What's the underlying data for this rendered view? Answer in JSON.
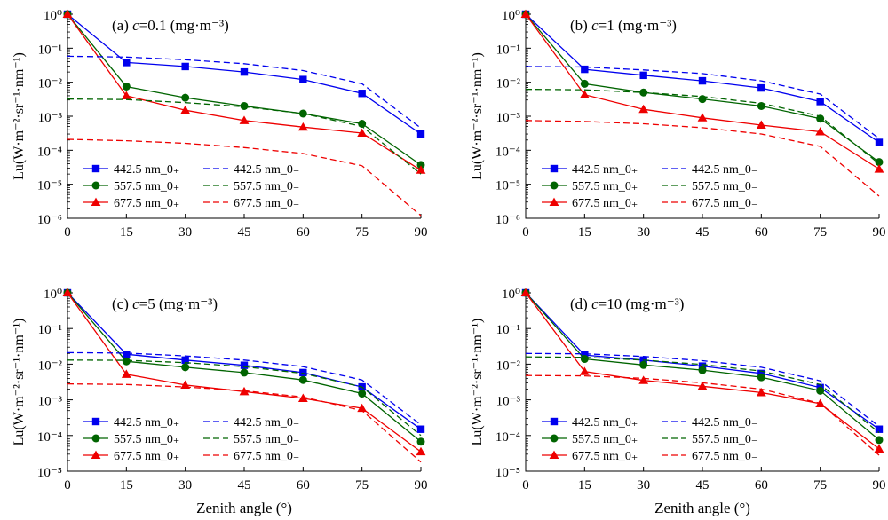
{
  "figure": {
    "y_axis_label": "Lu(W·m⁻²·sr⁻¹·nm⁻¹)",
    "x_axis_label": "Zenith angle (°)"
  },
  "chart_data": [
    {
      "type": "line",
      "panel_tag": "(a)",
      "title_var": "c",
      "title_rest": "=0.1 (mg·m⁻³)",
      "x": [
        0,
        15,
        30,
        45,
        60,
        75,
        90
      ],
      "x_ticks": [
        "0",
        "15",
        "30",
        "45",
        "60",
        "75",
        "90"
      ],
      "xlim": [
        0,
        90
      ],
      "ylim_exp": [
        -6,
        0
      ],
      "y_scale": "log",
      "y_ticks": [
        "10⁻⁶",
        "10⁻⁵",
        "10⁻⁴",
        "10⁻³",
        "10⁻²",
        "10⁻¹",
        "10⁰"
      ],
      "legend_placement": "bottom-left",
      "series": [
        {
          "name": "442.5 nm_0₊",
          "color": "#0000ee",
          "marker": "square",
          "dash": false,
          "values": [
            1.0,
            0.038,
            0.029,
            0.02,
            0.012,
            0.0047,
            0.0003
          ]
        },
        {
          "name": "557.5 nm_0₊",
          "color": "#006400",
          "marker": "circle",
          "dash": false,
          "values": [
            1.0,
            0.0075,
            0.0035,
            0.002,
            0.0012,
            0.0006,
            3.7e-05
          ]
        },
        {
          "name": "677.5 nm_0₊",
          "color": "#ee0000",
          "marker": "triangle",
          "dash": false,
          "values": [
            1.0,
            0.004,
            0.0015,
            0.00075,
            0.00048,
            0.00032,
            2.6e-05
          ]
        },
        {
          "name": "442.5 nm_0₋",
          "color": "#0000ee",
          "marker": "none",
          "dash": true,
          "values": [
            0.058,
            0.055,
            0.046,
            0.035,
            0.022,
            0.009,
            0.00045
          ]
        },
        {
          "name": "557.5 nm_0₋",
          "color": "#006400",
          "marker": "none",
          "dash": true,
          "values": [
            0.0032,
            0.0031,
            0.0025,
            0.0019,
            0.0012,
            0.0005,
            2e-05
          ]
        },
        {
          "name": "677.5 nm_0₋",
          "color": "#ee0000",
          "marker": "none",
          "dash": true,
          "values": [
            0.00021,
            0.00019,
            0.00016,
            0.00012,
            8e-05,
            3.5e-05,
            1.2e-06
          ]
        }
      ]
    },
    {
      "type": "line",
      "panel_tag": "(b)",
      "title_var": "c",
      "title_rest": "=1 (mg·m⁻³)",
      "x": [
        0,
        15,
        30,
        45,
        60,
        75,
        90
      ],
      "x_ticks": [
        "0",
        "15",
        "30",
        "45",
        "60",
        "75",
        "90"
      ],
      "xlim": [
        0,
        90
      ],
      "ylim_exp": [
        -6,
        0
      ],
      "y_scale": "log",
      "y_ticks": [
        "10⁻⁶",
        "10⁻⁵",
        "10⁻⁴",
        "10⁻³",
        "10⁻²",
        "10⁻¹",
        "10⁰"
      ],
      "legend_placement": "bottom-left",
      "series": [
        {
          "name": "442.5 nm_0₊",
          "color": "#0000ee",
          "marker": "square",
          "dash": false,
          "values": [
            1.0,
            0.024,
            0.016,
            0.011,
            0.0068,
            0.0027,
            0.00017
          ]
        },
        {
          "name": "557.5 nm_0₊",
          "color": "#006400",
          "marker": "circle",
          "dash": false,
          "values": [
            1.0,
            0.009,
            0.005,
            0.0032,
            0.002,
            0.00085,
            4.5e-05
          ]
        },
        {
          "name": "677.5 nm_0₊",
          "color": "#ee0000",
          "marker": "triangle",
          "dash": false,
          "values": [
            1.0,
            0.0043,
            0.0016,
            0.0009,
            0.00055,
            0.00035,
            2.8e-05
          ]
        },
        {
          "name": "442.5 nm_0₋",
          "color": "#0000ee",
          "marker": "none",
          "dash": true,
          "values": [
            0.029,
            0.028,
            0.023,
            0.018,
            0.011,
            0.0045,
            0.00022
          ]
        },
        {
          "name": "557.5 nm_0₋",
          "color": "#006400",
          "marker": "none",
          "dash": true,
          "values": [
            0.0062,
            0.006,
            0.005,
            0.0038,
            0.0024,
            0.001,
            4e-05
          ]
        },
        {
          "name": "677.5 nm_0₋",
          "color": "#ee0000",
          "marker": "none",
          "dash": true,
          "values": [
            0.00075,
            0.0007,
            0.0006,
            0.00046,
            0.0003,
            0.00013,
            4.5e-06
          ]
        }
      ]
    },
    {
      "type": "line",
      "panel_tag": "(c)",
      "title_var": "c",
      "title_rest": "=5 (mg·m⁻³)",
      "x": [
        0,
        15,
        30,
        45,
        60,
        75,
        90
      ],
      "x_ticks": [
        "0",
        "15",
        "30",
        "45",
        "60",
        "75",
        "90"
      ],
      "xlim": [
        0,
        90
      ],
      "ylim_exp": [
        -5,
        0
      ],
      "y_scale": "log",
      "y_ticks": [
        "10⁻⁵",
        "10⁻⁴",
        "10⁻³",
        "10⁻²",
        "10⁻¹",
        "10⁰"
      ],
      "legend_placement": "bottom-left",
      "series": [
        {
          "name": "442.5 nm_0₊",
          "color": "#0000ee",
          "marker": "square",
          "dash": false,
          "values": [
            1.0,
            0.019,
            0.013,
            0.0093,
            0.0058,
            0.0023,
            0.00015
          ]
        },
        {
          "name": "557.5 nm_0₊",
          "color": "#006400",
          "marker": "circle",
          "dash": false,
          "values": [
            1.0,
            0.012,
            0.0082,
            0.0058,
            0.0036,
            0.0015,
            6.7e-05
          ]
        },
        {
          "name": "677.5 nm_0₊",
          "color": "#ee0000",
          "marker": "triangle",
          "dash": false,
          "values": [
            1.0,
            0.0052,
            0.0026,
            0.0017,
            0.0011,
            0.00058,
            3.5e-05
          ]
        },
        {
          "name": "442.5 nm_0₋",
          "color": "#0000ee",
          "marker": "none",
          "dash": true,
          "values": [
            0.021,
            0.0205,
            0.017,
            0.013,
            0.0085,
            0.0036,
            0.0002
          ]
        },
        {
          "name": "557.5 nm_0₋",
          "color": "#006400",
          "marker": "none",
          "dash": true,
          "values": [
            0.013,
            0.0128,
            0.011,
            0.0085,
            0.0055,
            0.0023,
            0.0001
          ]
        },
        {
          "name": "677.5 nm_0₋",
          "color": "#ee0000",
          "marker": "none",
          "dash": true,
          "values": [
            0.0028,
            0.0027,
            0.0023,
            0.0018,
            0.0012,
            0.0005,
            1.8e-05
          ]
        }
      ]
    },
    {
      "type": "line",
      "panel_tag": "(d)",
      "title_var": "c",
      "title_rest": "=10 (mg·m⁻³)",
      "x": [
        0,
        15,
        30,
        45,
        60,
        75,
        90
      ],
      "x_ticks": [
        "0",
        "15",
        "30",
        "45",
        "60",
        "75",
        "90"
      ],
      "xlim": [
        0,
        90
      ],
      "ylim_exp": [
        -5,
        0
      ],
      "y_scale": "log",
      "y_ticks": [
        "10⁻⁵",
        "10⁻⁴",
        "10⁻³",
        "10⁻²",
        "10⁻¹",
        "10⁰"
      ],
      "legend_placement": "bottom-left",
      "series": [
        {
          "name": "442.5 nm_0₊",
          "color": "#0000ee",
          "marker": "square",
          "dash": false,
          "values": [
            1.0,
            0.018,
            0.013,
            0.0088,
            0.0055,
            0.0022,
            0.00015
          ]
        },
        {
          "name": "557.5 nm_0₊",
          "color": "#006400",
          "marker": "circle",
          "dash": false,
          "values": [
            1.0,
            0.014,
            0.0095,
            0.0068,
            0.0043,
            0.0018,
            7.5e-05
          ]
        },
        {
          "name": "677.5 nm_0₊",
          "color": "#ee0000",
          "marker": "triangle",
          "dash": false,
          "values": [
            1.0,
            0.0062,
            0.0035,
            0.0024,
            0.0016,
            0.00078,
            4.2e-05
          ]
        },
        {
          "name": "442.5 nm_0₋",
          "color": "#0000ee",
          "marker": "none",
          "dash": true,
          "values": [
            0.02,
            0.0195,
            0.0165,
            0.0125,
            0.0082,
            0.0034,
            0.00018
          ]
        },
        {
          "name": "557.5 nm_0₋",
          "color": "#006400",
          "marker": "none",
          "dash": true,
          "values": [
            0.016,
            0.0155,
            0.013,
            0.0098,
            0.0064,
            0.0027,
            0.00012
          ]
        },
        {
          "name": "677.5 nm_0₋",
          "color": "#ee0000",
          "marker": "none",
          "dash": true,
          "values": [
            0.0048,
            0.0047,
            0.004,
            0.003,
            0.002,
            0.0008,
            2.8e-05
          ]
        }
      ]
    }
  ]
}
